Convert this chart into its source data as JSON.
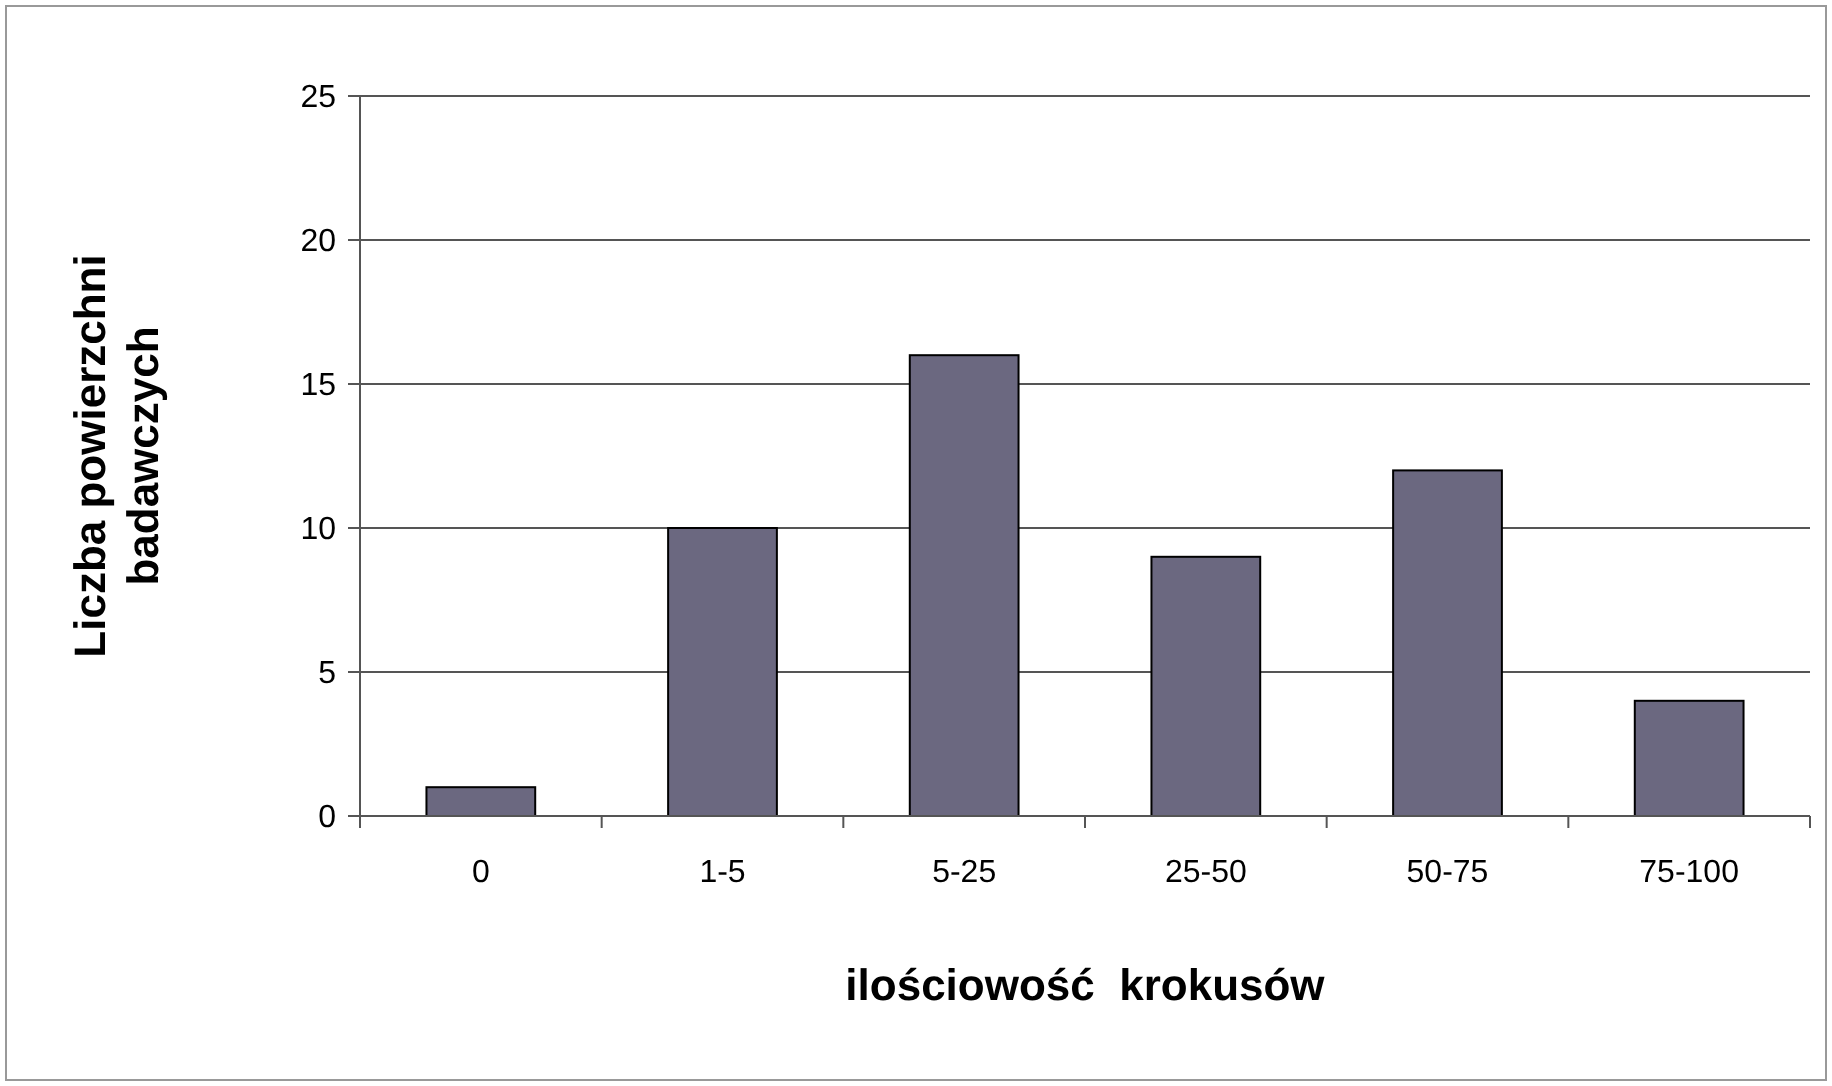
{
  "chart_data": {
    "type": "bar",
    "xlabel": "ilościowość  krokusów",
    "ylabel": "Liczba powierzchni badawczych",
    "categories": [
      "0",
      "1-5",
      "5-25",
      "25-50",
      "50-75",
      "75-100"
    ],
    "values": [
      1,
      10,
      16,
      9,
      12,
      4
    ],
    "color": "#6b6880",
    "ylim": [
      0,
      25
    ],
    "yticks": [
      0,
      5,
      10,
      15,
      20,
      25
    ],
    "grid": "y"
  }
}
